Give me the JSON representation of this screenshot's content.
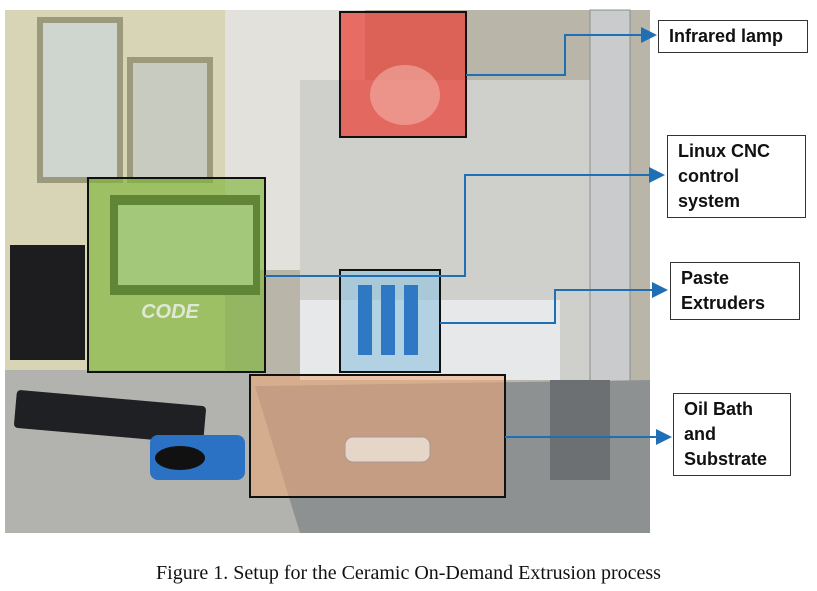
{
  "figure": {
    "photo_sign": "CODE",
    "callouts": [
      {
        "lines": [
          "Infrared lamp"
        ]
      },
      {
        "lines": [
          "Linux CNC",
          "control",
          "system"
        ]
      },
      {
        "lines": [
          "Paste",
          "Extruders"
        ]
      },
      {
        "lines": [
          "Oil Bath",
          "and",
          "Substrate"
        ]
      }
    ],
    "caption": "Figure 1. Setup for the Ceramic On-Demand Extrusion process"
  }
}
